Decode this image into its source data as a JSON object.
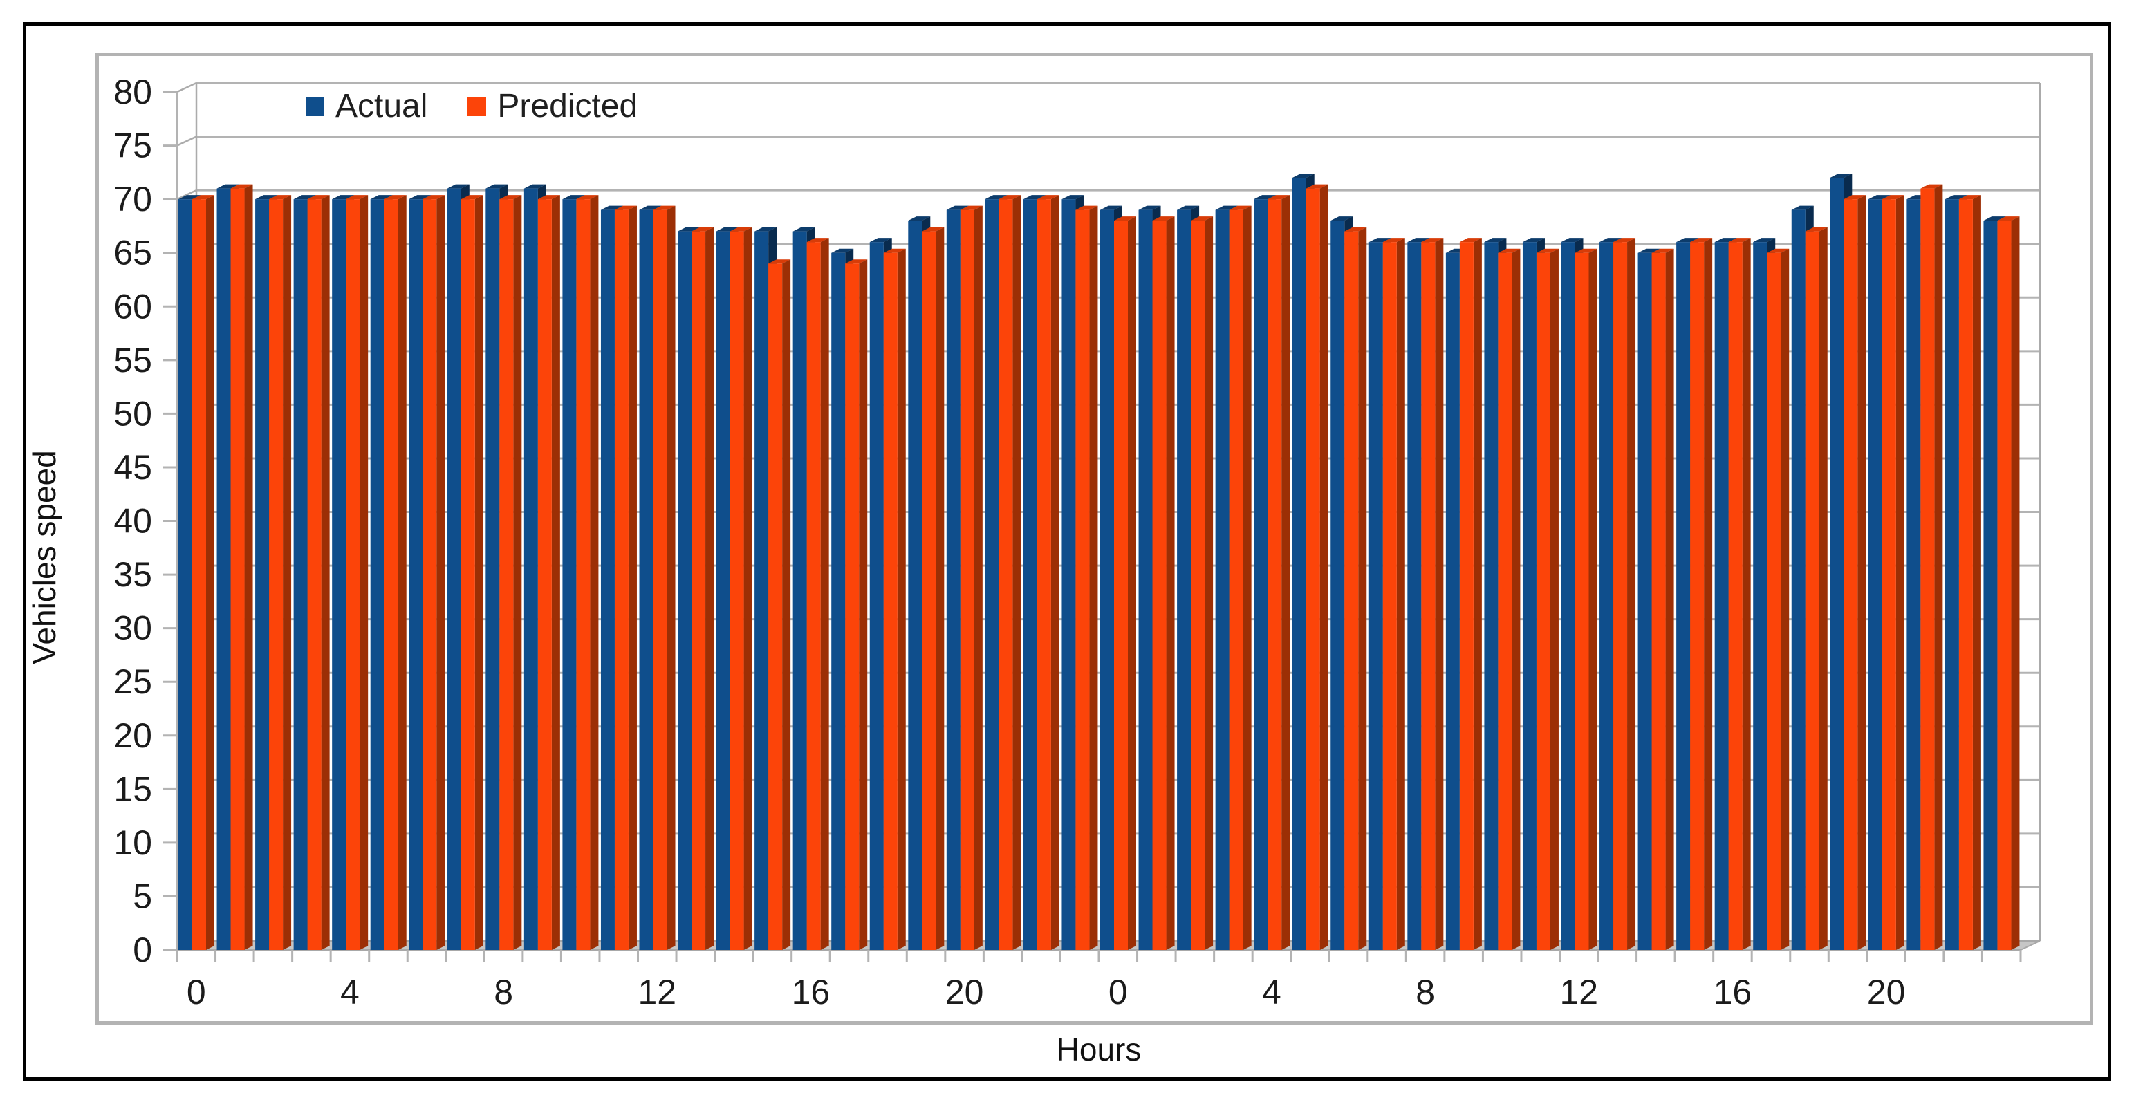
{
  "axes": {
    "y_title": "Vehicles speed",
    "x_title": "Hours"
  },
  "legend": {
    "items": [
      {
        "label": "Actual",
        "color": "#0f4e8c"
      },
      {
        "label": "Predicted",
        "color": "#fc4409"
      }
    ]
  },
  "colors": {
    "actual_front": "#0f4e8c",
    "actual_top": "#0d3c6b",
    "actual_side": "#092b4e",
    "predicted_front": "#fc4409",
    "predicted_top": "#d83c08",
    "predicted_side": "#9c2f05",
    "gridline": "#b3b3b3",
    "wall_line": "#ababab",
    "floor_fill": "#c6c6c6",
    "floor_stroke": "#a8a8a8",
    "tick_text": "#1b1b1b",
    "frame_gray": "#b3b3b3",
    "frame_black": "#000000"
  },
  "chart_data": {
    "type": "bar",
    "style": "3d-effect-column-chart",
    "title": "",
    "xlabel": "Hours",
    "ylabel": "Vehicles speed",
    "ylim": [
      0,
      80
    ],
    "y_ticks": [
      0,
      5,
      10,
      15,
      20,
      25,
      30,
      35,
      40,
      45,
      50,
      55,
      60,
      65,
      70,
      75,
      80
    ],
    "grid": "horizontal",
    "legend_position": "top-inside-left",
    "x_tick_label_step": 4,
    "categories": [
      "0",
      "1",
      "2",
      "3",
      "4",
      "5",
      "6",
      "7",
      "8",
      "9",
      "10",
      "11",
      "12",
      "13",
      "14",
      "15",
      "16",
      "17",
      "18",
      "19",
      "20",
      "21",
      "22",
      "23",
      "0",
      "1",
      "2",
      "3",
      "4",
      "5",
      "6",
      "7",
      "8",
      "9",
      "10",
      "11",
      "12",
      "13",
      "14",
      "15",
      "16",
      "17",
      "18",
      "19",
      "20",
      "21",
      "22",
      "23"
    ],
    "series": [
      {
        "name": "Actual",
        "color": "#0f4e8c",
        "values": [
          70,
          71,
          70,
          70,
          70,
          70,
          70,
          71,
          71,
          71,
          70,
          69,
          69,
          67,
          67,
          67,
          67,
          65,
          66,
          68,
          69,
          70,
          70,
          70,
          69,
          69,
          69,
          69,
          70,
          72,
          68,
          66,
          66,
          65,
          66,
          66,
          66,
          66,
          65,
          66,
          66,
          66,
          69,
          72,
          70,
          70,
          70,
          68
        ]
      },
      {
        "name": "Predicted",
        "color": "#fc4409",
        "values": [
          70,
          71,
          70,
          70,
          70,
          70,
          70,
          70,
          70,
          70,
          70,
          69,
          69,
          67,
          67,
          64,
          66,
          64,
          65,
          67,
          69,
          70,
          70,
          69,
          68,
          68,
          68,
          69,
          70,
          71,
          67,
          66,
          66,
          66,
          65,
          65,
          65,
          66,
          65,
          66,
          66,
          65,
          67,
          70,
          70,
          71,
          70,
          68
        ]
      }
    ]
  }
}
